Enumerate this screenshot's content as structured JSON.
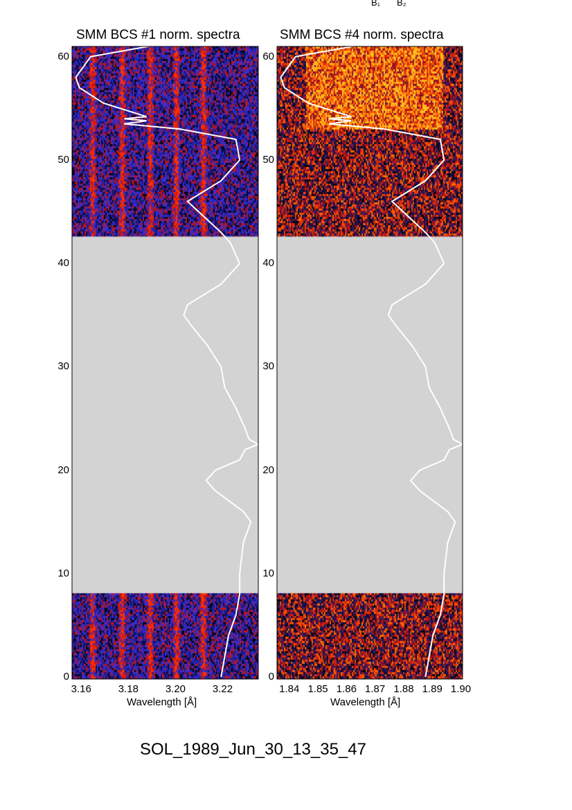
{
  "top_labels": [
    "B₁",
    "B₂"
  ],
  "footer": "SOL_1989_Jun_30_13_35_47",
  "chart_data": [
    {
      "type": "heatmap",
      "title": "SMM BCS #1 norm. spectra",
      "xlabel": "Wavelength [Å]",
      "ylabel": "",
      "xlim": [
        3.156,
        3.235
      ],
      "ylim": [
        0,
        61
      ],
      "xticks": [
        "3.16",
        "3.18",
        "3.20",
        "3.22"
      ],
      "xtick_values": [
        3.16,
        3.18,
        3.2,
        3.22
      ],
      "yticks": [
        "0",
        "10",
        "20",
        "30",
        "40",
        "50",
        "60"
      ],
      "data_gap": [
        8.1,
        42.6
      ],
      "gap_color": "#d3d3d3",
      "colormap": [
        "#000000",
        "#1a1a8a",
        "#3030e0",
        "#c01010",
        "#ff3000"
      ],
      "bright_lines": [
        3.1645,
        3.177,
        3.189,
        3.2,
        3.2115
      ]
    },
    {
      "type": "heatmap",
      "title": "SMM BCS #4 norm. spectra",
      "xlabel": "Wavelength [Å]",
      "ylabel": "",
      "xlim": [
        1.8356,
        1.9005
      ],
      "ylim": [
        0,
        61
      ],
      "xticks": [
        "1.84",
        "1.85",
        "1.86",
        "1.87",
        "1.88",
        "1.89",
        "1.90"
      ],
      "xtick_values": [
        1.84,
        1.85,
        1.86,
        1.87,
        1.88,
        1.89,
        1.9
      ],
      "yticks": [
        "0",
        "10",
        "20",
        "30",
        "40",
        "50",
        "60"
      ],
      "data_gap": [
        8.1,
        42.6
      ],
      "gap_color": "#d3d3d3",
      "colormap": [
        "#000000",
        "#1a1a6a",
        "#c01010",
        "#ff6000",
        "#ffc020"
      ]
    }
  ],
  "light_curve": {
    "color": "#ffffff",
    "y": [
      61,
      60,
      58,
      57,
      55.5,
      54.2,
      54,
      53.8,
      53.5,
      53,
      52,
      50,
      48,
      46,
      45,
      43,
      42,
      40,
      38,
      36,
      35,
      34,
      32,
      30,
      28,
      26,
      24,
      23,
      22.5,
      22,
      21,
      20,
      19,
      18,
      16,
      15,
      13,
      10,
      8,
      6,
      4,
      2,
      0
    ],
    "level": [
      0.41,
      0.1,
      0.02,
      0.04,
      0.17,
      0.4,
      0.28,
      0.4,
      0.28,
      0.58,
      0.88,
      0.9,
      0.8,
      0.62,
      0.68,
      0.8,
      0.85,
      0.9,
      0.8,
      0.62,
      0.6,
      0.64,
      0.73,
      0.8,
      0.82,
      0.88,
      0.93,
      0.95,
      1.0,
      0.93,
      0.9,
      0.77,
      0.72,
      0.77,
      0.92,
      0.96,
      0.92,
      0.9,
      0.9,
      0.88,
      0.84,
      0.82,
      0.8
    ]
  }
}
